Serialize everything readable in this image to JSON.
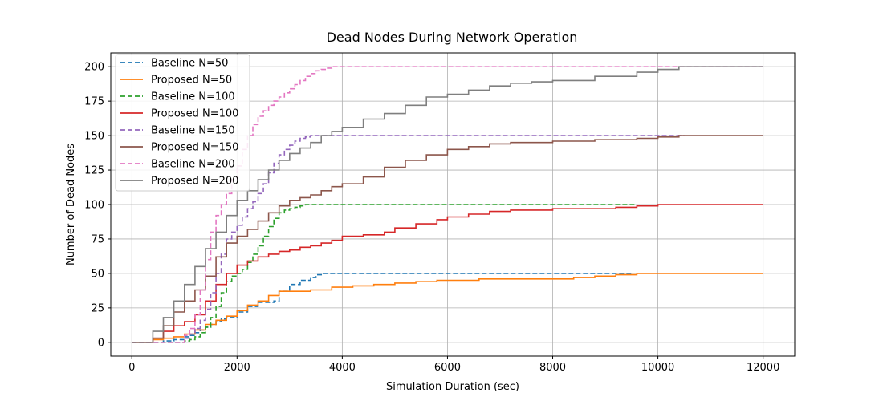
{
  "chart_data": {
    "type": "line",
    "title": "Dead Nodes During Network Operation",
    "xlabel": "Simulation Duration (sec)",
    "ylabel": "Number of Dead Nodes",
    "xlim": [
      -400,
      12600
    ],
    "ylim": [
      -10,
      210
    ],
    "xticks": [
      0,
      2000,
      4000,
      6000,
      8000,
      10000,
      12000
    ],
    "xtick_labels": [
      "0",
      "2000",
      "4000",
      "6000",
      "8000",
      "10000",
      "12000"
    ],
    "yticks": [
      0,
      25,
      50,
      75,
      100,
      125,
      150,
      175,
      200
    ],
    "ytick_labels": [
      "0",
      "25",
      "50",
      "75",
      "100",
      "125",
      "150",
      "175",
      "200"
    ],
    "grid": true,
    "legend_position": "upper-left",
    "series": [
      {
        "name": "Baseline N=50",
        "color": "#1f77b4",
        "dash": true,
        "x": [
          0,
          400,
          600,
          800,
          1000,
          1100,
          1200,
          1300,
          1400,
          1500,
          1600,
          1700,
          1800,
          2000,
          2200,
          2400,
          2600,
          2700,
          2800,
          3000,
          3200,
          3400,
          3500,
          3600,
          5000,
          7000,
          9000,
          9500
        ],
        "y": [
          0,
          0,
          1,
          2,
          4,
          5,
          7,
          9,
          11,
          13,
          15,
          17,
          18,
          22,
          26,
          29,
          29,
          30,
          37,
          42,
          45,
          47,
          49,
          50,
          50,
          50,
          50,
          50
        ]
      },
      {
        "name": "Proposed N=50",
        "color": "#ff7f0e",
        "dash": false,
        "x": [
          0,
          200,
          400,
          600,
          800,
          1000,
          1200,
          1400,
          1600,
          1800,
          2000,
          2200,
          2400,
          2600,
          2800,
          3000,
          3400,
          3800,
          4200,
          4600,
          5000,
          5400,
          5800,
          6200,
          6600,
          7000,
          7600,
          8400,
          8800,
          9200,
          9600,
          10000,
          12000
        ],
        "y": [
          0,
          0,
          2,
          3,
          4,
          6,
          9,
          13,
          16,
          19,
          23,
          27,
          30,
          34,
          37,
          37,
          38,
          40,
          41,
          42,
          43,
          44,
          45,
          45,
          46,
          46,
          46,
          47,
          48,
          49,
          50,
          50,
          50
        ]
      },
      {
        "name": "Baseline N=100",
        "color": "#2ca02c",
        "dash": true,
        "x": [
          0,
          900,
          1000,
          1100,
          1200,
          1300,
          1400,
          1500,
          1600,
          1700,
          1800,
          1900,
          2000,
          2100,
          2200,
          2300,
          2400,
          2500,
          2600,
          2700,
          2800,
          2900,
          3000,
          3100,
          3200,
          3300,
          3400,
          4000,
          6000,
          8000,
          9600
        ],
        "y": [
          0,
          0,
          1,
          2,
          4,
          7,
          11,
          18,
          26,
          36,
          44,
          48,
          50,
          53,
          58,
          64,
          70,
          77,
          84,
          90,
          94,
          96,
          97,
          98,
          99,
          100,
          100,
          100,
          100,
          100,
          100
        ]
      },
      {
        "name": "Proposed N=100",
        "color": "#d62728",
        "dash": false,
        "x": [
          0,
          200,
          400,
          600,
          800,
          1000,
          1200,
          1400,
          1600,
          1800,
          2000,
          2200,
          2400,
          2600,
          2800,
          3000,
          3200,
          3400,
          3600,
          3800,
          4000,
          4400,
          4800,
          5000,
          5400,
          5800,
          6000,
          6400,
          6800,
          7200,
          8000,
          8800,
          9200,
          9600,
          10000,
          12000
        ],
        "y": [
          0,
          0,
          3,
          8,
          12,
          15,
          20,
          30,
          42,
          50,
          56,
          59,
          62,
          64,
          66,
          67,
          69,
          70,
          72,
          74,
          77,
          78,
          80,
          83,
          86,
          89,
          91,
          93,
          95,
          96,
          97,
          97,
          98,
          99,
          100,
          100
        ]
      },
      {
        "name": "Baseline N=150",
        "color": "#9467bd",
        "dash": true,
        "x": [
          0,
          800,
          1000,
          1100,
          1200,
          1300,
          1400,
          1500,
          1600,
          1700,
          1800,
          1900,
          2000,
          2100,
          2200,
          2300,
          2400,
          2500,
          2600,
          2700,
          2800,
          2900,
          3000,
          3100,
          3200,
          3300,
          3400,
          4000,
          6000,
          8000,
          10000,
          10500
        ],
        "y": [
          0,
          0,
          3,
          6,
          10,
          16,
          24,
          36,
          50,
          64,
          75,
          80,
          85,
          91,
          97,
          102,
          108,
          115,
          123,
          130,
          136,
          140,
          143,
          146,
          148,
          149,
          150,
          150,
          150,
          150,
          150,
          150
        ]
      },
      {
        "name": "Proposed N=150",
        "color": "#8c564b",
        "dash": false,
        "x": [
          0,
          200,
          400,
          600,
          800,
          1000,
          1200,
          1400,
          1600,
          1800,
          2000,
          2200,
          2400,
          2600,
          2800,
          3000,
          3200,
          3400,
          3600,
          3800,
          4000,
          4400,
          4800,
          5200,
          5600,
          6000,
          6400,
          6800,
          7200,
          8000,
          8800,
          9600,
          10000,
          10400,
          12000
        ],
        "y": [
          0,
          0,
          3,
          12,
          22,
          30,
          38,
          48,
          62,
          72,
          77,
          82,
          88,
          94,
          99,
          103,
          105,
          107,
          110,
          113,
          115,
          120,
          127,
          132,
          136,
          140,
          142,
          144,
          145,
          146,
          147,
          148,
          149,
          150,
          150
        ]
      },
      {
        "name": "Baseline N=200",
        "color": "#e377c2",
        "dash": true,
        "x": [
          0,
          900,
          1000,
          1100,
          1200,
          1300,
          1400,
          1500,
          1600,
          1700,
          1800,
          1900,
          2000,
          2100,
          2200,
          2300,
          2400,
          2500,
          2600,
          2700,
          2800,
          2900,
          3000,
          3100,
          3200,
          3300,
          3400,
          3500,
          3600,
          3700,
          3800,
          4000,
          6000,
          8000,
          10000,
          12000
        ],
        "y": [
          0,
          0,
          5,
          10,
          20,
          38,
          60,
          80,
          92,
          100,
          108,
          118,
          128,
          140,
          150,
          158,
          164,
          168,
          172,
          175,
          178,
          181,
          184,
          187,
          190,
          193,
          195,
          197,
          198,
          199,
          200,
          200,
          200,
          200,
          200,
          200
        ]
      },
      {
        "name": "Proposed N=200",
        "color": "#7f7f7f",
        "dash": false,
        "x": [
          0,
          200,
          400,
          600,
          800,
          1000,
          1200,
          1400,
          1600,
          1800,
          2000,
          2200,
          2400,
          2600,
          2800,
          3000,
          3200,
          3400,
          3600,
          3800,
          4000,
          4400,
          4800,
          5200,
          5600,
          6000,
          6400,
          6800,
          7200,
          7600,
          8000,
          8800,
          9600,
          10000,
          10400,
          12000
        ],
        "y": [
          0,
          0,
          8,
          18,
          30,
          42,
          55,
          68,
          80,
          92,
          103,
          110,
          118,
          125,
          132,
          137,
          141,
          145,
          150,
          153,
          156,
          162,
          166,
          172,
          178,
          180,
          183,
          186,
          188,
          189,
          190,
          193,
          196,
          198,
          200,
          200
        ]
      }
    ]
  }
}
